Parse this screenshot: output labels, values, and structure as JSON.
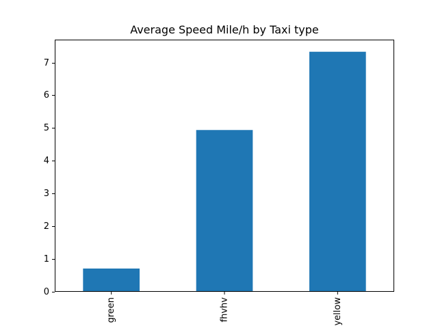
{
  "chart_data": {
    "type": "bar",
    "title": "Average Speed Mile/h by Taxi type",
    "xlabel": "",
    "ylabel": "",
    "categories": [
      "green",
      "fhvhv",
      "yellow"
    ],
    "values": [
      0.71,
      4.94,
      7.33
    ],
    "ylim": [
      0,
      7.7
    ],
    "yticks": [
      0,
      1,
      2,
      3,
      4,
      5,
      6,
      7
    ],
    "bar_color": "#1f77b4",
    "grid": false,
    "legend": "none"
  }
}
